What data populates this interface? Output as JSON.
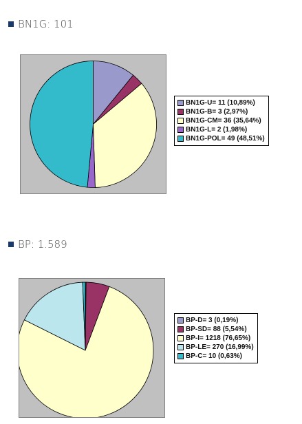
{
  "colors": {
    "heading_square": "#1a3a6b",
    "plot_background": "#c0c0c0"
  },
  "chart_data": [
    {
      "type": "pie",
      "heading": "BN1G: 101",
      "slices": [
        {
          "label": "BN1G-U= 11 (10,89%)",
          "value": 11,
          "color": "#9999cc"
        },
        {
          "label": "BN1G-B= 3 (2,97%)",
          "value": 3,
          "color": "#993366"
        },
        {
          "label": "BN1G-CM= 36 (35,64%)",
          "value": 36,
          "color": "#ffffcc"
        },
        {
          "label": "BN1G-L= 2 (1,98%)",
          "value": 2,
          "color": "#9966cc"
        },
        {
          "label": "BN1G-POL= 49 (48,51%)",
          "value": 49,
          "color": "#33bbcc"
        }
      ],
      "legend_position": "right"
    },
    {
      "type": "pie",
      "heading": "BP: 1.589",
      "slices": [
        {
          "label": "BP-D= 3 (0,19%)",
          "value": 3,
          "color": "#9999cc"
        },
        {
          "label": "BP-SD= 88 (5,54%)",
          "value": 88,
          "color": "#993366"
        },
        {
          "label": "BP-I= 1218 (76,65%)",
          "value": 1218,
          "color": "#ffffcc"
        },
        {
          "label": "BP-LE= 270 (16,99%)",
          "value": 270,
          "color": "#bbe6ee"
        },
        {
          "label": "BP-C= 10 (0,63%)",
          "value": 10,
          "color": "#33bbcc"
        }
      ],
      "legend_position": "right"
    }
  ]
}
